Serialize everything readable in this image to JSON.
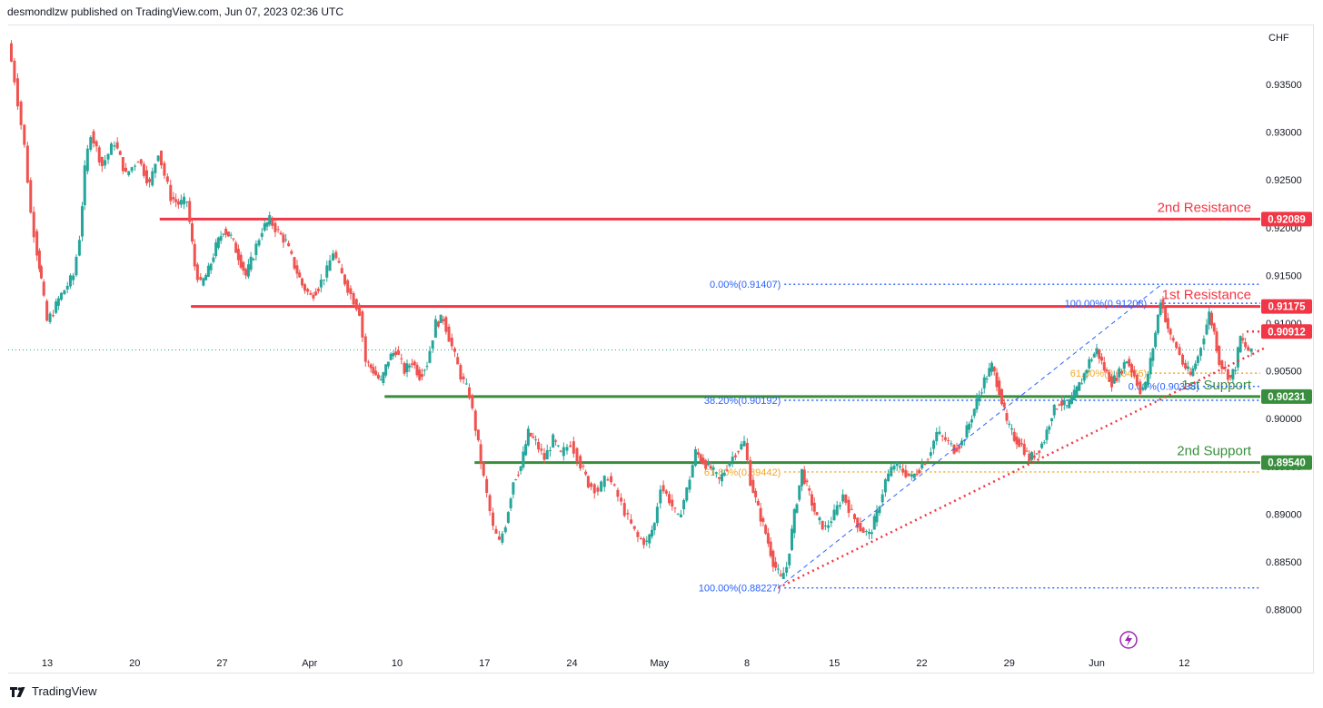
{
  "header": {
    "publisher_text": "desmondlzw published on TradingView.com, Jun 07, 2023 02:36 UTC"
  },
  "footer": {
    "brand": "TradingView",
    "logo_icon": "tradingview-logo-icon"
  },
  "chart_data": {
    "type": "candlestick",
    "currency_label": "CHF",
    "y_ticks": [
      "0.93500",
      "0.93000",
      "0.92500",
      "0.92000",
      "0.91500",
      "0.91000",
      "0.90500",
      "0.90000",
      "0.89500",
      "0.89000",
      "0.88500",
      "0.88000"
    ],
    "ylim": [
      0.8772,
      0.94
    ],
    "x_ticks": [
      {
        "label": "13",
        "day": 13
      },
      {
        "label": "20",
        "day": 20
      },
      {
        "label": "27",
        "day": 27
      },
      {
        "label": "Apr",
        "day": 34
      },
      {
        "label": "10",
        "day": 41
      },
      {
        "label": "17",
        "day": 48
      },
      {
        "label": "24",
        "day": 55
      },
      {
        "label": "May",
        "day": 62
      },
      {
        "label": "8",
        "day": 69
      },
      {
        "label": "15",
        "day": 76
      },
      {
        "label": "22",
        "day": 83
      },
      {
        "label": "29",
        "day": 90
      },
      {
        "label": "Jun",
        "day": 97
      },
      {
        "label": "12",
        "day": 104
      }
    ],
    "colors": {
      "up": "#26a69a",
      "down": "#ef5350",
      "resistance": "#f23645",
      "support": "#388e3c",
      "fib_blue": "#2962ff",
      "fib_orange": "#f5a623",
      "last_price_line": "#26a69a"
    },
    "price_path": [
      {
        "day": 10,
        "price": 0.9393
      },
      {
        "day": 10.5,
        "price": 0.9355
      },
      {
        "day": 11.3,
        "price": 0.9285
      },
      {
        "day": 11.8,
        "price": 0.9215
      },
      {
        "day": 12.3,
        "price": 0.9175
      },
      {
        "day": 12.6,
        "price": 0.9145
      },
      {
        "day": 13.1,
        "price": 0.9102
      },
      {
        "day": 13.6,
        "price": 0.9112
      },
      {
        "day": 14.0,
        "price": 0.9125
      },
      {
        "day": 14.5,
        "price": 0.9135
      },
      {
        "day": 15.2,
        "price": 0.915
      },
      {
        "day": 15.7,
        "price": 0.919
      },
      {
        "day": 16.1,
        "price": 0.926
      },
      {
        "day": 16.6,
        "price": 0.93
      },
      {
        "day": 17.5,
        "price": 0.9265
      },
      {
        "day": 18.5,
        "price": 0.929
      },
      {
        "day": 19.4,
        "price": 0.9255
      },
      {
        "day": 20.4,
        "price": 0.9272
      },
      {
        "day": 21.3,
        "price": 0.9245
      },
      {
        "day": 22.0,
        "price": 0.928
      },
      {
        "day": 22.5,
        "price": 0.9255
      },
      {
        "day": 23.0,
        "price": 0.9232
      },
      {
        "day": 23.6,
        "price": 0.9225
      },
      {
        "day": 24.3,
        "price": 0.9228
      },
      {
        "day": 24.9,
        "price": 0.916
      },
      {
        "day": 25.4,
        "price": 0.914
      },
      {
        "day": 26.0,
        "price": 0.9155
      },
      {
        "day": 26.6,
        "price": 0.918
      },
      {
        "day": 27.2,
        "price": 0.9198
      },
      {
        "day": 27.8,
        "price": 0.919
      },
      {
        "day": 28.4,
        "price": 0.917
      },
      {
        "day": 29.0,
        "price": 0.915
      },
      {
        "day": 29.6,
        "price": 0.9172
      },
      {
        "day": 30.3,
        "price": 0.9198
      },
      {
        "day": 30.9,
        "price": 0.9208
      },
      {
        "day": 31.6,
        "price": 0.9195
      },
      {
        "day": 32.2,
        "price": 0.9185
      },
      {
        "day": 32.9,
        "price": 0.916
      },
      {
        "day": 33.5,
        "price": 0.914
      },
      {
        "day": 34.2,
        "price": 0.9128
      },
      {
        "day": 34.8,
        "price": 0.9138
      },
      {
        "day": 35.5,
        "price": 0.9155
      },
      {
        "day": 36.0,
        "price": 0.9175
      },
      {
        "day": 36.7,
        "price": 0.915
      },
      {
        "day": 37.4,
        "price": 0.913
      },
      {
        "day": 38.1,
        "price": 0.9112
      },
      {
        "day": 38.6,
        "price": 0.906
      },
      {
        "day": 39.2,
        "price": 0.905
      },
      {
        "day": 39.8,
        "price": 0.9038
      },
      {
        "day": 40.4,
        "price": 0.9062
      },
      {
        "day": 41.0,
        "price": 0.9072
      },
      {
        "day": 41.7,
        "price": 0.905
      },
      {
        "day": 42.3,
        "price": 0.906
      },
      {
        "day": 42.9,
        "price": 0.9045
      },
      {
        "day": 43.5,
        "price": 0.9058
      },
      {
        "day": 44.2,
        "price": 0.91
      },
      {
        "day": 44.8,
        "price": 0.9105
      },
      {
        "day": 45.5,
        "price": 0.9075
      },
      {
        "day": 46.2,
        "price": 0.9045
      },
      {
        "day": 46.9,
        "price": 0.9025
      },
      {
        "day": 47.4,
        "price": 0.899
      },
      {
        "day": 47.8,
        "price": 0.8955
      },
      {
        "day": 48.3,
        "price": 0.892
      },
      {
        "day": 48.8,
        "price": 0.8885
      },
      {
        "day": 49.3,
        "price": 0.887
      },
      {
        "day": 49.8,
        "price": 0.889
      },
      {
        "day": 50.4,
        "price": 0.8935
      },
      {
        "day": 51.0,
        "price": 0.895
      },
      {
        "day": 51.6,
        "price": 0.8985
      },
      {
        "day": 52.2,
        "price": 0.8975
      },
      {
        "day": 52.9,
        "price": 0.8958
      },
      {
        "day": 53.6,
        "price": 0.8978
      },
      {
        "day": 54.2,
        "price": 0.8962
      },
      {
        "day": 55.0,
        "price": 0.8975
      },
      {
        "day": 55.8,
        "price": 0.8952
      },
      {
        "day": 56.4,
        "price": 0.8932
      },
      {
        "day": 57.2,
        "price": 0.8925
      },
      {
        "day": 58.0,
        "price": 0.894
      },
      {
        "day": 58.8,
        "price": 0.8918
      },
      {
        "day": 59.6,
        "price": 0.8895
      },
      {
        "day": 60.4,
        "price": 0.8875
      },
      {
        "day": 61.1,
        "price": 0.887
      },
      {
        "day": 61.7,
        "price": 0.889
      },
      {
        "day": 62.2,
        "price": 0.893
      },
      {
        "day": 62.9,
        "price": 0.8915
      },
      {
        "day": 63.6,
        "price": 0.8895
      },
      {
        "day": 64.3,
        "price": 0.8925
      },
      {
        "day": 65.0,
        "price": 0.8965
      },
      {
        "day": 65.6,
        "price": 0.8955
      },
      {
        "day": 66.2,
        "price": 0.8948
      },
      {
        "day": 66.9,
        "price": 0.8935
      },
      {
        "day": 67.5,
        "price": 0.895
      },
      {
        "day": 68.2,
        "price": 0.8965
      },
      {
        "day": 68.9,
        "price": 0.8975
      },
      {
        "day": 69.4,
        "price": 0.8935
      },
      {
        "day": 70.0,
        "price": 0.8905
      },
      {
        "day": 70.6,
        "price": 0.888
      },
      {
        "day": 71.2,
        "price": 0.885
      },
      {
        "day": 71.8,
        "price": 0.8832
      },
      {
        "day": 72.3,
        "price": 0.8845
      },
      {
        "day": 72.9,
        "price": 0.89
      },
      {
        "day": 73.5,
        "price": 0.8945
      },
      {
        "day": 74.1,
        "price": 0.892
      },
      {
        "day": 74.7,
        "price": 0.8895
      },
      {
        "day": 75.4,
        "price": 0.8885
      },
      {
        "day": 76.1,
        "price": 0.89
      },
      {
        "day": 76.8,
        "price": 0.892
      },
      {
        "day": 77.5,
        "price": 0.89
      },
      {
        "day": 78.2,
        "price": 0.8885
      },
      {
        "day": 78.9,
        "price": 0.8878
      },
      {
        "day": 79.5,
        "price": 0.89
      },
      {
        "day": 80.2,
        "price": 0.8935
      },
      {
        "day": 80.9,
        "price": 0.8952
      },
      {
        "day": 81.6,
        "price": 0.8945
      },
      {
        "day": 82.3,
        "price": 0.8938
      },
      {
        "day": 82.9,
        "price": 0.8948
      },
      {
        "day": 83.6,
        "price": 0.896
      },
      {
        "day": 84.3,
        "price": 0.8985
      },
      {
        "day": 85.0,
        "price": 0.8978
      },
      {
        "day": 85.7,
        "price": 0.8968
      },
      {
        "day": 86.3,
        "price": 0.8975
      },
      {
        "day": 86.9,
        "price": 0.8995
      },
      {
        "day": 87.5,
        "price": 0.9018
      },
      {
        "day": 88.1,
        "price": 0.904
      },
      {
        "day": 88.7,
        "price": 0.9055
      },
      {
        "day": 89.3,
        "price": 0.903
      },
      {
        "day": 89.9,
        "price": 0.8995
      },
      {
        "day": 90.5,
        "price": 0.898
      },
      {
        "day": 91.1,
        "price": 0.8972
      },
      {
        "day": 91.7,
        "price": 0.8958
      },
      {
        "day": 92.3,
        "price": 0.8965
      },
      {
        "day": 92.9,
        "price": 0.8978
      },
      {
        "day": 93.5,
        "price": 0.9005
      },
      {
        "day": 94.1,
        "price": 0.9018
      },
      {
        "day": 94.7,
        "price": 0.9012
      },
      {
        "day": 95.3,
        "price": 0.9025
      },
      {
        "day": 95.9,
        "price": 0.904
      },
      {
        "day": 96.5,
        "price": 0.906
      },
      {
        "day": 97.1,
        "price": 0.9072
      },
      {
        "day": 97.7,
        "price": 0.9052
      },
      {
        "day": 98.3,
        "price": 0.9038
      },
      {
        "day": 98.9,
        "price": 0.9048
      },
      {
        "day": 99.5,
        "price": 0.9062
      },
      {
        "day": 100.1,
        "price": 0.9045
      },
      {
        "day": 100.6,
        "price": 0.903
      },
      {
        "day": 101.0,
        "price": 0.9035
      },
      {
        "day": 101.4,
        "price": 0.906
      },
      {
        "day": 101.8,
        "price": 0.909
      },
      {
        "day": 102.2,
        "price": 0.9125
      },
      {
        "day": 102.6,
        "price": 0.9105
      },
      {
        "day": 103.0,
        "price": 0.9085
      },
      {
        "day": 103.5,
        "price": 0.9075
      },
      {
        "day": 104.0,
        "price": 0.9058
      },
      {
        "day": 104.6,
        "price": 0.9045
      },
      {
        "day": 105.2,
        "price": 0.9065
      },
      {
        "day": 105.7,
        "price": 0.9088
      },
      {
        "day": 106.1,
        "price": 0.911
      },
      {
        "day": 106.5,
        "price": 0.909
      },
      {
        "day": 106.9,
        "price": 0.906
      },
      {
        "day": 107.4,
        "price": 0.905
      },
      {
        "day": 107.8,
        "price": 0.9042
      },
      {
        "day": 108.2,
        "price": 0.9055
      },
      {
        "day": 108.6,
        "price": 0.9085
      },
      {
        "day": 109.0,
        "price": 0.9075
      },
      {
        "day": 109.5,
        "price": 0.9068
      }
    ],
    "levels": [
      {
        "name": "2nd Resistance",
        "price": 0.92089,
        "tag": "0.92089",
        "kind": "resistance",
        "from_day": 22
      },
      {
        "name": "1st Resistance",
        "price": 0.91175,
        "tag": "0.91175",
        "kind": "resistance",
        "from_day": 24.5
      },
      {
        "name": "1st Support",
        "price": 0.90231,
        "tag": "0.90231",
        "kind": "support",
        "from_day": 40.0
      },
      {
        "name": "2nd Support",
        "price": 0.8954,
        "tag": "0.89540",
        "kind": "support",
        "from_day": 47.2
      }
    ],
    "fib_levels": [
      {
        "text": "0.00%(0.91407)",
        "price": 0.91407,
        "color": "blue",
        "from_day": 72.0,
        "to_day": 118.0
      },
      {
        "text": "100.00%(0.91208)",
        "price": 0.91208,
        "color": "blue",
        "from_day": 101.3,
        "to_day": 118.0
      },
      {
        "text": "61.80%(0.90476)",
        "price": 0.90476,
        "color": "orange",
        "from_day": 101.3,
        "to_day": 118.0
      },
      {
        "text": "0.00%(0.90338)",
        "price": 0.90338,
        "color": "blue",
        "from_day": 105.5,
        "to_day": 118.0
      },
      {
        "text": "38.20%(0.90192)",
        "price": 0.90192,
        "color": "blue",
        "from_day": 72.0,
        "to_day": 118.0
      },
      {
        "text": "61.80%(0.89442)",
        "price": 0.89442,
        "color": "orange",
        "from_day": 72.0,
        "to_day": 118.0
      },
      {
        "text": "100.00%(0.88227)",
        "price": 0.88227,
        "color": "blue",
        "from_day": 72.0,
        "to_day": 118.0
      }
    ],
    "trendline": {
      "from_day": 71.5,
      "from_price": 0.88227,
      "to_day": 110.6,
      "to_price": 0.9075
    },
    "fib_diagonal": {
      "from_day": 71.5,
      "from_price": 0.88227,
      "to_day": 102.2,
      "to_price": 0.91407
    },
    "price_tag": {
      "price": 0.90912,
      "tag": "0.90912"
    },
    "last_price": 0.9072,
    "event_icon": "lightning-icon"
  }
}
